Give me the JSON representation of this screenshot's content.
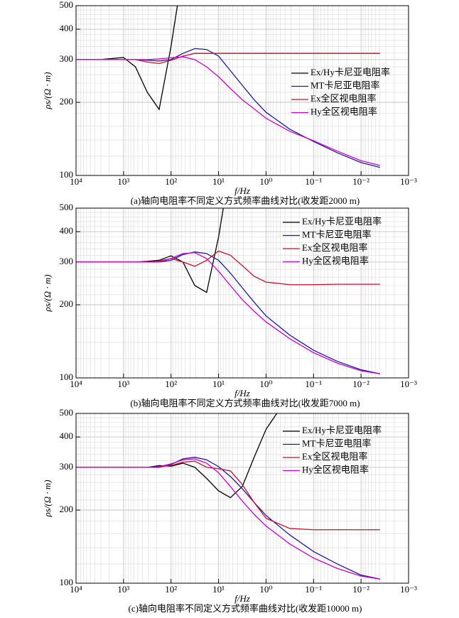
{
  "chart_data": [
    {
      "type": "line",
      "title": "(a)轴向电阻率不同定义方式频率曲线对比(收发距2000 m)",
      "xlabel": "f/Hz",
      "ylabel": "ρs/(Ω · m)",
      "x": [
        10000,
        3162,
        1000,
        562,
        316,
        178,
        100,
        56.2,
        31.6,
        17.8,
        10,
        5.62,
        3.16,
        1.78,
        1,
        0.316,
        0.1,
        0.0316,
        0.01,
        0.004
      ],
      "xscale": "log",
      "yscale": "log",
      "grid": true,
      "legend": "right",
      "xlim": [
        10000,
        0.001
      ],
      "ylim": [
        100,
        500
      ],
      "xticks": [
        {
          "value": 10000,
          "label": "10⁴"
        },
        {
          "value": 1000,
          "label": "10³"
        },
        {
          "value": 100,
          "label": "10²"
        },
        {
          "value": 10,
          "label": "10¹"
        },
        {
          "value": 1,
          "label": "10⁰"
        },
        {
          "value": 0.1,
          "label": "10⁻¹"
        },
        {
          "value": 0.01,
          "label": "10⁻²"
        },
        {
          "value": 0.001,
          "label": "10⁻³"
        }
      ],
      "yticks": [
        100,
        200,
        300,
        400,
        500
      ],
      "series": [
        {
          "name": "Ex/Hy卡尼亚电阻率",
          "color": "#000000",
          "values": [
            300,
            300,
            306,
            280,
            220,
            187,
            340,
            700,
            null,
            null,
            null,
            null,
            null,
            null,
            null,
            null,
            null,
            null,
            null,
            null
          ]
        },
        {
          "name": "MT卡尼亚电阻率",
          "color": "#1a1a9a",
          "values": [
            300,
            300,
            300,
            300,
            298,
            296,
            300,
            318,
            333,
            330,
            310,
            270,
            235,
            205,
            182,
            155,
            138,
            124,
            113,
            108
          ]
        },
        {
          "name": "Ex全区视电阻率",
          "color": "#c8102e",
          "values": [
            300,
            300,
            300,
            300,
            293,
            289,
            298,
            310,
            318,
            318,
            318,
            318,
            318,
            318,
            318,
            318,
            318,
            318,
            318,
            318
          ]
        },
        {
          "name": "Hy全区视电阻率",
          "color": "#cc00cc",
          "values": [
            300,
            300,
            300,
            300,
            300,
            302,
            305,
            308,
            300,
            280,
            255,
            228,
            205,
            188,
            172,
            152,
            139,
            126,
            115,
            110
          ]
        }
      ]
    },
    {
      "type": "line",
      "title": "(b)轴向电阻率不同定义方式频率曲线对比(收发距7000 m)",
      "xlabel": "f/Hz",
      "ylabel": "ρs/(Ω · m)",
      "x": [
        10000,
        3162,
        1000,
        562,
        316,
        178,
        100,
        56.2,
        31.6,
        17.8,
        10,
        5.62,
        3.16,
        1.78,
        1,
        0.316,
        0.1,
        0.0316,
        0.01,
        0.004
      ],
      "xscale": "log",
      "yscale": "log",
      "grid": true,
      "legend": "upper right",
      "xlim": [
        10000,
        0.001
      ],
      "ylim": [
        100,
        500
      ],
      "xticks": [
        {
          "value": 10000,
          "label": "10⁴"
        },
        {
          "value": 1000,
          "label": "10³"
        },
        {
          "value": 100,
          "label": "10²"
        },
        {
          "value": 10,
          "label": "10¹"
        },
        {
          "value": 1,
          "label": "10⁰"
        },
        {
          "value": 0.1,
          "label": "10⁻¹"
        },
        {
          "value": 0.01,
          "label": "10⁻²"
        },
        {
          "value": 0.001,
          "label": "10⁻³"
        }
      ],
      "yticks": [
        100,
        200,
        300,
        400,
        500
      ],
      "series": [
        {
          "name": "Ex/Hy卡尼亚电阻率",
          "color": "#000000",
          "values": [
            300,
            300,
            300,
            300,
            302,
            305,
            318,
            300,
            240,
            225,
            380,
            750,
            null,
            null,
            null,
            null,
            null,
            null,
            null,
            null
          ]
        },
        {
          "name": "MT卡尼亚电阻率",
          "color": "#1a1a9a",
          "values": [
            300,
            300,
            300,
            300,
            300,
            300,
            305,
            322,
            330,
            325,
            305,
            270,
            235,
            205,
            180,
            150,
            130,
            117,
            108,
            104
          ]
        },
        {
          "name": "Ex全区视电阻率",
          "color": "#c8102e",
          "values": [
            300,
            300,
            300,
            300,
            300,
            303,
            310,
            300,
            288,
            305,
            333,
            320,
            290,
            262,
            248,
            242,
            242,
            243,
            243,
            243
          ]
        },
        {
          "name": "Hy全区视电阻率",
          "color": "#cc00cc",
          "values": [
            300,
            300,
            300,
            300,
            300,
            300,
            310,
            325,
            328,
            310,
            275,
            240,
            210,
            188,
            170,
            145,
            127,
            115,
            107,
            104
          ]
        }
      ]
    },
    {
      "type": "line",
      "title": "(c)轴向电阻率不同定义方式频率曲线对比(收发距10000 m)",
      "xlabel": "f/Hz",
      "ylabel": "ρs/(Ω · m)",
      "x": [
        10000,
        3162,
        1000,
        562,
        316,
        178,
        100,
        56.2,
        31.6,
        17.8,
        10,
        5.62,
        3.16,
        1.78,
        1,
        0.316,
        0.1,
        0.0316,
        0.01,
        0.004
      ],
      "xscale": "log",
      "yscale": "log",
      "grid": true,
      "legend": "upper right",
      "xlim": [
        10000,
        0.001
      ],
      "ylim": [
        100,
        500
      ],
      "xticks": [
        {
          "value": 10000,
          "label": "10⁴"
        },
        {
          "value": 1000,
          "label": "10³"
        },
        {
          "value": 100,
          "label": "10²"
        },
        {
          "value": 10,
          "label": "10¹"
        },
        {
          "value": 1,
          "label": "10⁰"
        },
        {
          "value": 0.1,
          "label": "10⁻¹"
        },
        {
          "value": 0.01,
          "label": "10⁻²"
        },
        {
          "value": 0.001,
          "label": "10⁻³"
        }
      ],
      "yticks": [
        100,
        200,
        300,
        400,
        500
      ],
      "series": [
        {
          "name": "Ex/Hy卡尼亚电阻率",
          "color": "#000000",
          "values": [
            300,
            300,
            300,
            300,
            300,
            305,
            303,
            312,
            300,
            270,
            240,
            225,
            250,
            330,
            430,
            600,
            null,
            null,
            null,
            null
          ]
        },
        {
          "name": "MT卡尼亚电阻率",
          "color": "#1a1a9a",
          "values": [
            300,
            300,
            300,
            300,
            300,
            300,
            308,
            325,
            330,
            322,
            302,
            275,
            245,
            215,
            190,
            158,
            135,
            120,
            108,
            104
          ]
        },
        {
          "name": "Ex全区视电阻率",
          "color": "#c8102e",
          "values": [
            300,
            300,
            300,
            300,
            300,
            302,
            305,
            315,
            318,
            300,
            296,
            290,
            255,
            215,
            185,
            168,
            166,
            166,
            166,
            166
          ]
        },
        {
          "name": "Hy全区视电阻率",
          "color": "#cc00cc",
          "values": [
            300,
            300,
            300,
            300,
            300,
            302,
            310,
            322,
            325,
            312,
            285,
            250,
            218,
            192,
            172,
            145,
            127,
            115,
            107,
            104
          ]
        }
      ]
    }
  ]
}
